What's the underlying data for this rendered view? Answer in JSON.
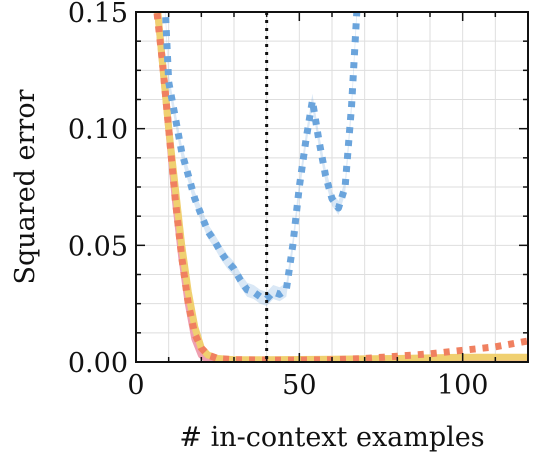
{
  "chart_data": {
    "type": "line",
    "title": "",
    "xlabel": "# in-context examples",
    "ylabel": "Squared error",
    "xlim": [
      0,
      120
    ],
    "ylim": [
      0,
      0.15
    ],
    "xticks": [
      0,
      50,
      100
    ],
    "yticks": [
      0.0,
      0.05,
      0.1,
      0.15
    ],
    "xtick_labels": [
      "0",
      "50",
      "100"
    ],
    "ytick_labels": [
      "0.00",
      "0.05",
      "0.10",
      "0.15"
    ],
    "grid": true,
    "vertical_line": {
      "x": 40,
      "style": "dotted",
      "color": "#111111"
    },
    "series": [
      {
        "color": "#ef9fb0",
        "style": "solid",
        "points": [
          [
            6,
            0.16
          ],
          [
            8,
            0.13
          ],
          [
            10,
            0.1
          ],
          [
            12,
            0.07
          ],
          [
            14,
            0.045
          ],
          [
            16,
            0.025
          ],
          [
            18,
            0.01
          ],
          [
            20,
            0.003
          ],
          [
            22,
            0.0008
          ],
          [
            25,
            0.0002
          ],
          [
            30,
            0.0001
          ],
          [
            40,
            0.0001
          ],
          [
            60,
            0.0001
          ],
          [
            80,
            0.0001
          ],
          [
            100,
            0.0001
          ],
          [
            120,
            0.0001
          ]
        ]
      },
      {
        "color": "#f0d070",
        "style": "solid",
        "points": [
          [
            6,
            0.16
          ],
          [
            8,
            0.13
          ],
          [
            10,
            0.1
          ],
          [
            12,
            0.075
          ],
          [
            14,
            0.05
          ],
          [
            16,
            0.03
          ],
          [
            18,
            0.015
          ],
          [
            20,
            0.006
          ],
          [
            22,
            0.003
          ],
          [
            25,
            0.0015
          ],
          [
            30,
            0.001
          ],
          [
            40,
            0.001
          ],
          [
            60,
            0.0012
          ],
          [
            80,
            0.0015
          ],
          [
            100,
            0.002
          ],
          [
            120,
            0.002
          ]
        ]
      },
      {
        "color": "#f08060",
        "style": "dotted",
        "points": [
          [
            6,
            0.155
          ],
          [
            8,
            0.13
          ],
          [
            10,
            0.1
          ],
          [
            12,
            0.07
          ],
          [
            14,
            0.045
          ],
          [
            16,
            0.025
          ],
          [
            18,
            0.012
          ],
          [
            20,
            0.006
          ],
          [
            22,
            0.003
          ],
          [
            25,
            0.0015
          ],
          [
            30,
            0.001
          ],
          [
            40,
            0.0008
          ],
          [
            50,
            0.0008
          ],
          [
            60,
            0.001
          ],
          [
            70,
            0.0015
          ],
          [
            80,
            0.0025
          ],
          [
            90,
            0.0035
          ],
          [
            100,
            0.005
          ],
          [
            110,
            0.0065
          ],
          [
            120,
            0.009
          ]
        ]
      },
      {
        "color": "#6aa4dc",
        "style": "dotted",
        "band": 0.003,
        "points": [
          [
            8,
            0.17
          ],
          [
            9,
            0.15
          ],
          [
            10,
            0.12
          ],
          [
            12,
            0.105
          ],
          [
            14,
            0.09
          ],
          [
            16,
            0.08
          ],
          [
            18,
            0.07
          ],
          [
            20,
            0.063
          ],
          [
            22,
            0.056
          ],
          [
            24,
            0.052
          ],
          [
            26,
            0.047
          ],
          [
            28,
            0.043
          ],
          [
            30,
            0.04
          ],
          [
            32,
            0.035
          ],
          [
            34,
            0.031
          ],
          [
            36,
            0.03
          ],
          [
            38,
            0.028
          ],
          [
            40,
            0.027
          ],
          [
            42,
            0.03
          ],
          [
            44,
            0.029
          ],
          [
            46,
            0.031
          ],
          [
            48,
            0.05
          ],
          [
            50,
            0.075
          ],
          [
            52,
            0.095
          ],
          [
            54,
            0.112
          ],
          [
            56,
            0.095
          ],
          [
            58,
            0.08
          ],
          [
            60,
            0.07
          ],
          [
            62,
            0.066
          ],
          [
            64,
            0.075
          ],
          [
            66,
            0.11
          ],
          [
            68,
            0.16
          ]
        ]
      }
    ]
  }
}
